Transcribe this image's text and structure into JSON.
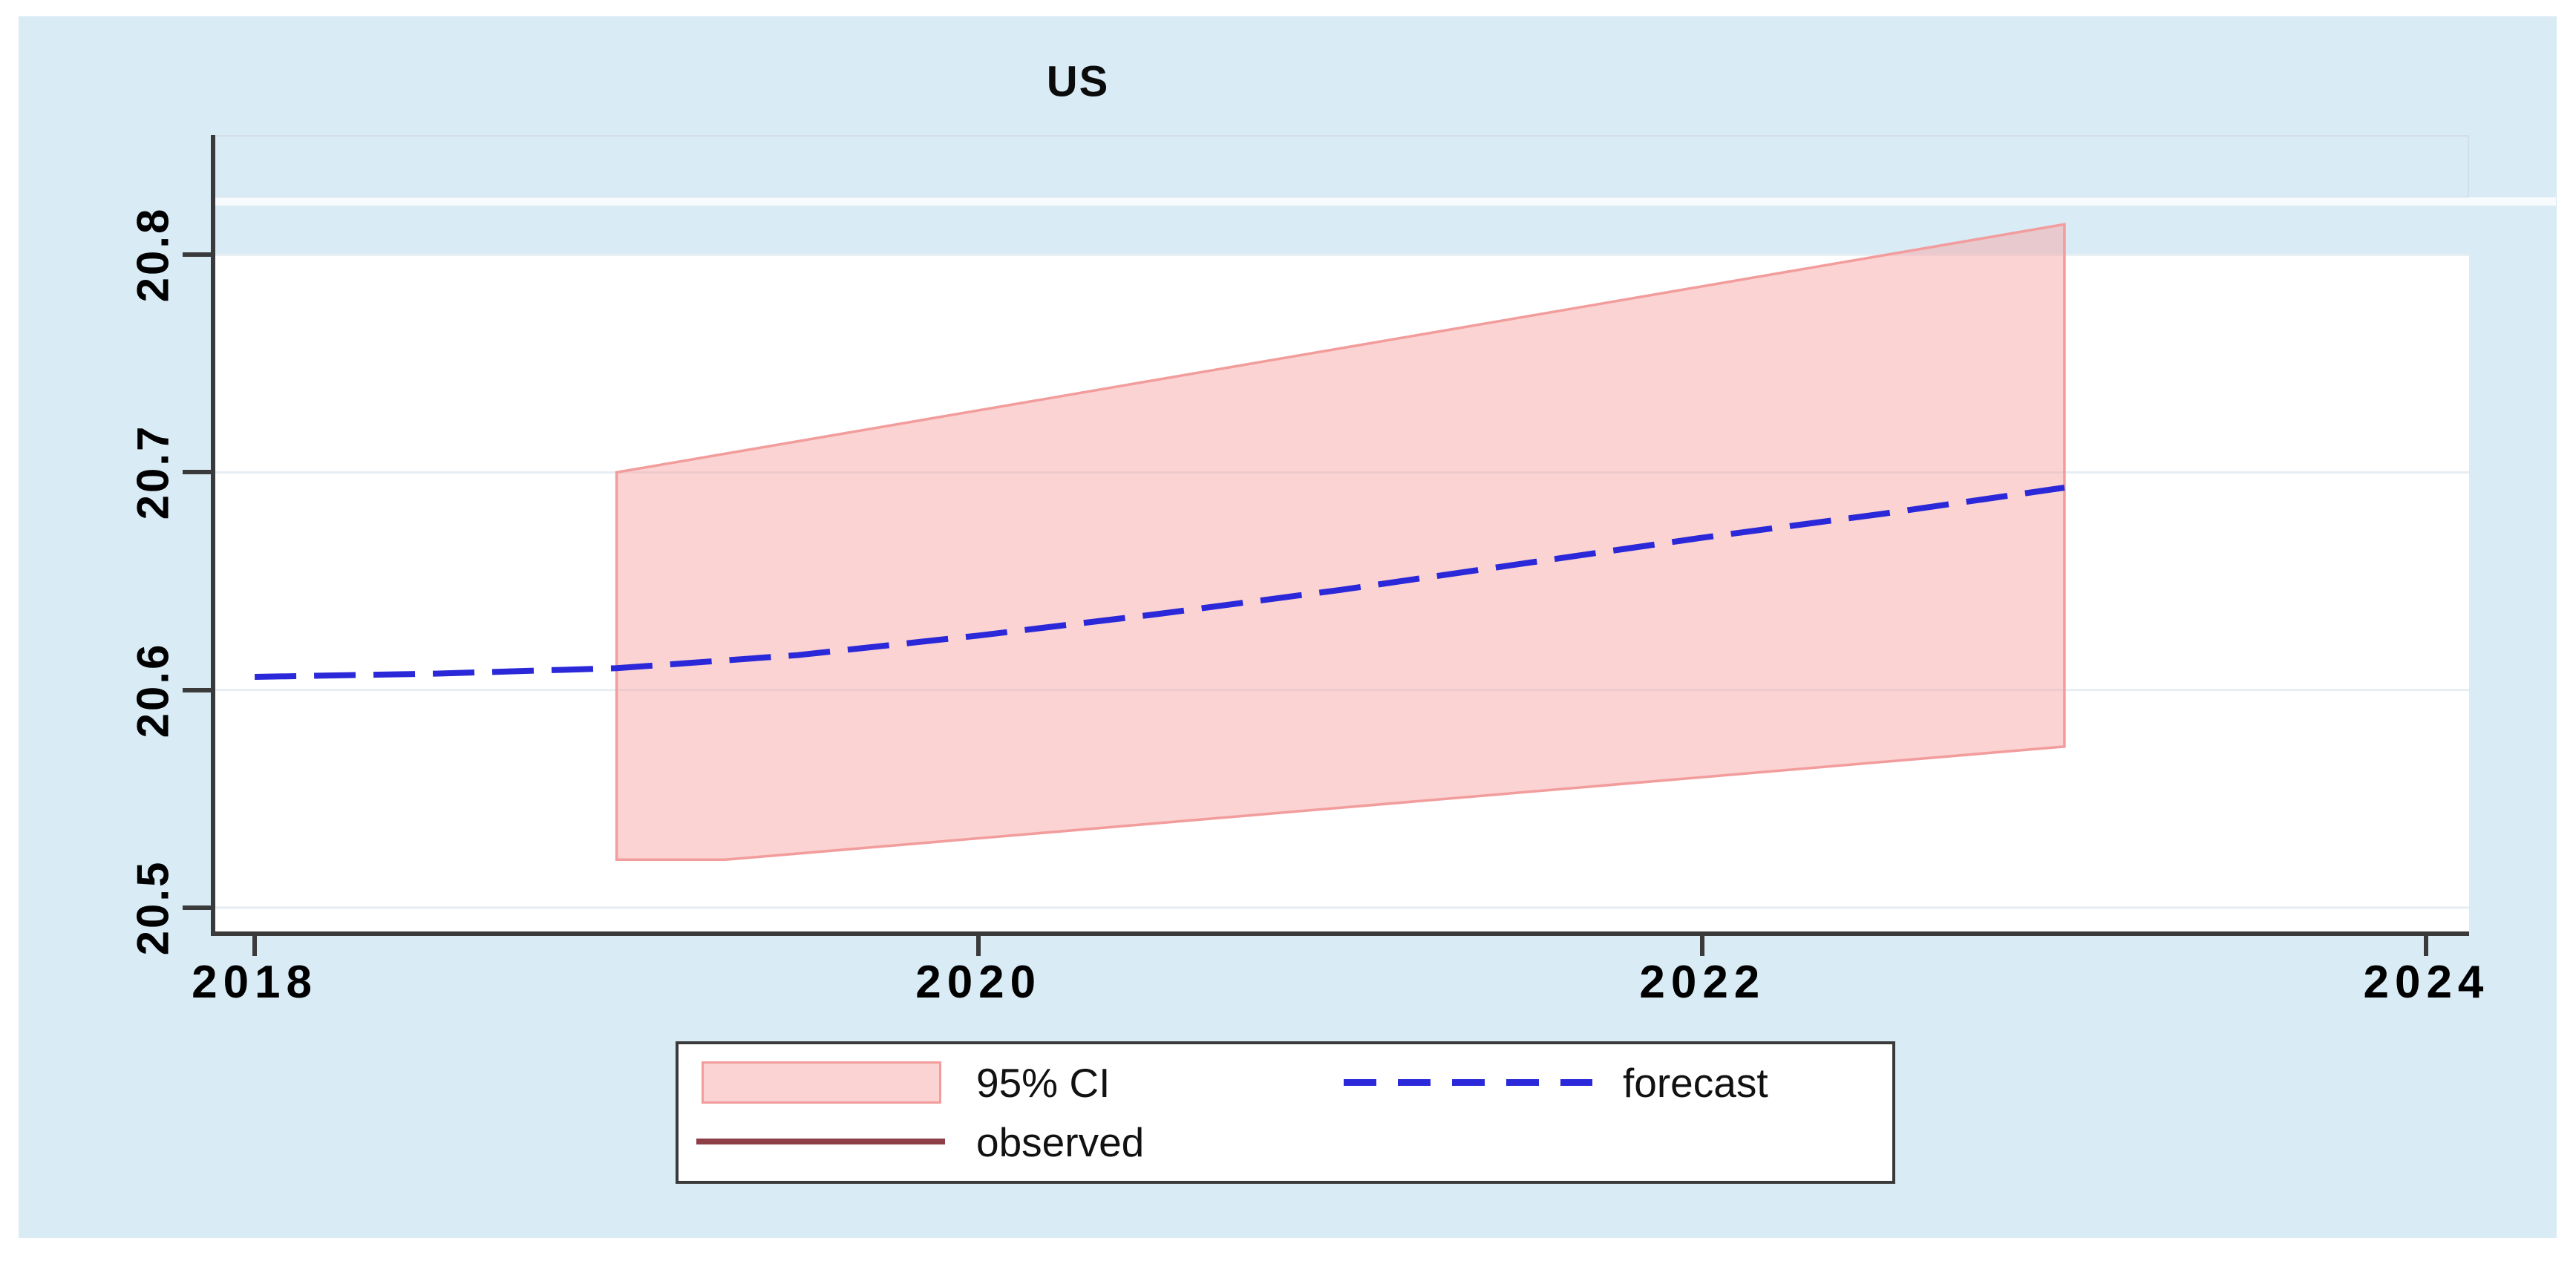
{
  "title": "US",
  "colors": {
    "graph_background": "#d9ebf5",
    "plot_background": "#ffffff",
    "gridline": "#e6edf3",
    "axis": "#3a3a3a",
    "ci_fill": "#f7a8a8",
    "ci_border": "#f29c9c",
    "forecast_blue": "#2a28d8",
    "observed_maroon": "#8e3e46",
    "legend_border": "#3a3a3a"
  },
  "chart_data": {
    "type": "line",
    "title": "US",
    "xlabel": "",
    "ylabel": "",
    "grid": "horizontal",
    "legend_position": "bottom",
    "x_axis": {
      "ticks": [
        2018,
        2020,
        2022,
        2024
      ],
      "tick_labels": [
        "2018",
        "2020",
        "2022",
        "2024"
      ],
      "range": [
        2017.885,
        2024.118
      ]
    },
    "y_axis": {
      "ticks": [
        20.5,
        20.6,
        20.7,
        20.8
      ],
      "tick_labels": [
        "20.5",
        "20.6",
        "20.7",
        "20.8"
      ],
      "range": [
        20.488,
        20.855
      ]
    },
    "series": [
      {
        "name": "95% CI",
        "type": "band",
        "fill": "#f7a8a8",
        "border": "#f29c9c",
        "points_upper": [
          [
            2019,
            20.7
          ],
          [
            2023,
            20.814
          ]
        ],
        "points_lower": [
          [
            2019,
            20.522
          ],
          [
            2019.3,
            20.522
          ],
          [
            2023,
            20.574
          ]
        ]
      },
      {
        "name": "forecast",
        "type": "line",
        "style": "dashed",
        "color": "#2a28d8",
        "points": [
          [
            2018,
            20.606
          ],
          [
            2018.5,
            20.6075
          ],
          [
            2019,
            20.61
          ],
          [
            2019.5,
            20.616
          ],
          [
            2020,
            20.625
          ],
          [
            2020.5,
            20.635
          ],
          [
            2021,
            20.646
          ],
          [
            2021.5,
            20.658
          ],
          [
            2022,
            20.67
          ],
          [
            2022.5,
            20.681
          ],
          [
            2023,
            20.693
          ]
        ]
      },
      {
        "name": "observed",
        "type": "line",
        "style": "solid",
        "color": "#8e3e46",
        "points": []
      }
    ]
  },
  "legend": {
    "items": [
      {
        "label": "95% CI",
        "swatch": "band"
      },
      {
        "label": "forecast",
        "swatch": "dashed-line"
      },
      {
        "label": "observed",
        "swatch": "solid-line"
      }
    ]
  }
}
